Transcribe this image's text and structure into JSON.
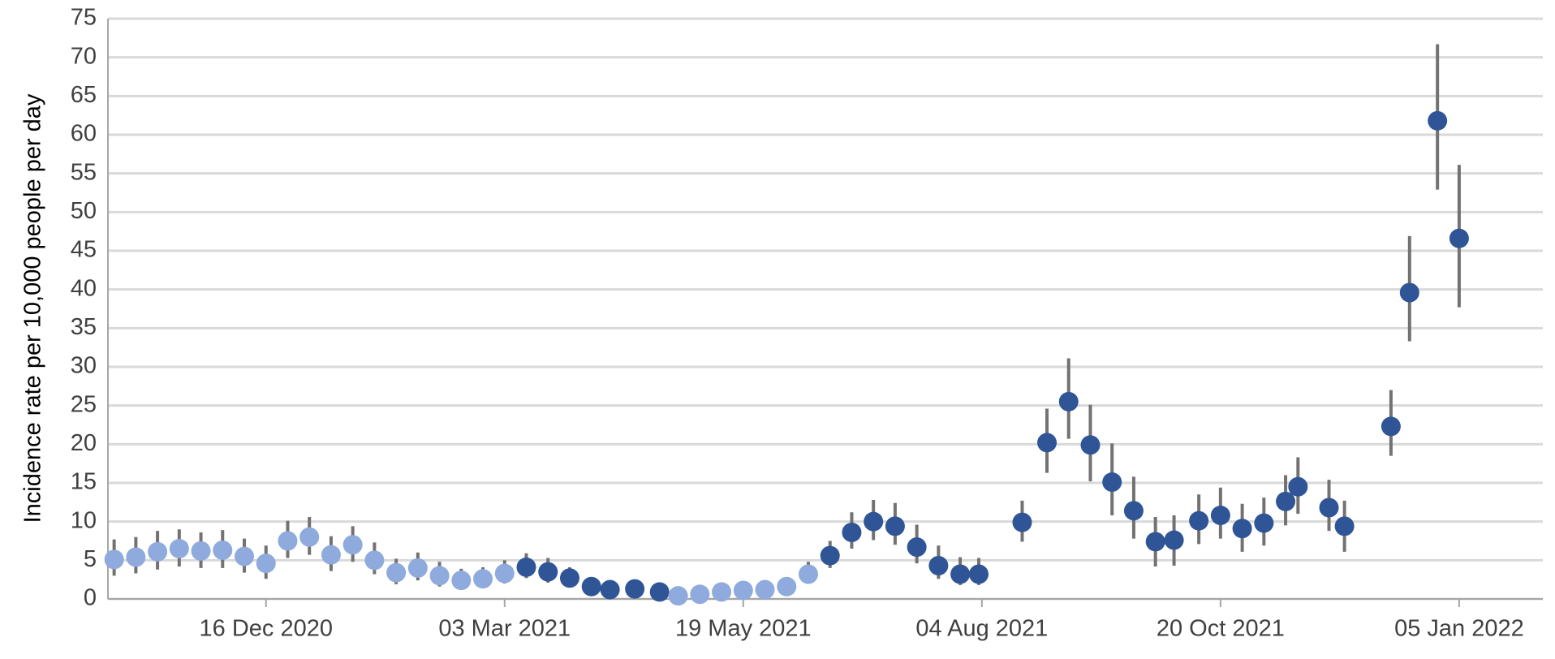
{
  "chart_data": {
    "type": "scatter-errorbar",
    "y_label": "Incidence rate per 10,000 people per day",
    "x": [
      "2020-10-28",
      "2020-11-04",
      "2020-11-11",
      "2020-11-18",
      "2020-11-25",
      "2020-12-02",
      "2020-12-09",
      "2020-12-16",
      "2020-12-23",
      "2020-12-30",
      "2021-01-06",
      "2021-01-13",
      "2021-01-20",
      "2021-01-27",
      "2021-02-03",
      "2021-02-10",
      "2021-02-17",
      "2021-02-24",
      "2021-03-03",
      "2021-03-10",
      "2021-03-17",
      "2021-03-24",
      "2021-03-31",
      "2021-04-06",
      "2021-04-14",
      "2021-04-22",
      "2021-04-28",
      "2021-05-05",
      "2021-05-12",
      "2021-05-19",
      "2021-05-26",
      "2021-06-02",
      "2021-06-09",
      "2021-06-16",
      "2021-06-23",
      "2021-06-30",
      "2021-07-07",
      "2021-07-14",
      "2021-07-21",
      "2021-07-28",
      "2021-08-03",
      "2021-08-17",
      "2021-08-25",
      "2021-09-01",
      "2021-09-08",
      "2021-09-15",
      "2021-09-22",
      "2021-09-29",
      "2021-10-05",
      "2021-10-13",
      "2021-10-20",
      "2021-10-27",
      "2021-11-03",
      "2021-11-10",
      "2021-11-14",
      "2021-11-24",
      "2021-11-29",
      "2021-12-14",
      "2021-12-20",
      "2021-12-29",
      "2022-01-05"
    ],
    "values": [
      5.1,
      5.4,
      6.1,
      6.5,
      6.2,
      6.3,
      5.5,
      4.6,
      7.5,
      8.0,
      5.7,
      7.0,
      5.0,
      3.4,
      4.0,
      3.0,
      2.4,
      2.6,
      3.3,
      4.1,
      3.5,
      2.7,
      1.6,
      1.2,
      1.3,
      0.9,
      0.4,
      0.6,
      0.9,
      1.1,
      1.2,
      1.6,
      3.2,
      5.6,
      8.6,
      10.0,
      9.4,
      6.7,
      4.3,
      3.2,
      3.2,
      9.9,
      20.2,
      25.5,
      19.9,
      15.1,
      11.4,
      7.4,
      7.6,
      10.1,
      10.8,
      9.1,
      9.8,
      12.6,
      14.5,
      11.8,
      9.4,
      22.3,
      39.6,
      61.8,
      46.6
    ],
    "lower": [
      3.0,
      3.3,
      3.8,
      4.2,
      4.0,
      4.0,
      3.4,
      2.6,
      5.3,
      5.7,
      3.6,
      4.8,
      3.2,
      1.9,
      2.4,
      1.6,
      1.3,
      1.5,
      2.0,
      2.7,
      2.1,
      1.6,
      0.8,
      0.5,
      0.6,
      0.3,
      0.1,
      0.2,
      0.3,
      0.4,
      0.5,
      0.7,
      2.0,
      4.0,
      6.5,
      7.6,
      7.0,
      4.6,
      2.6,
      1.8,
      1.8,
      7.4,
      16.3,
      20.7,
      15.2,
      10.8,
      7.8,
      4.2,
      4.3,
      7.1,
      7.8,
      6.1,
      6.9,
      9.5,
      11.0,
      8.8,
      6.1,
      18.5,
      33.3,
      52.9,
      37.7
    ],
    "upper": [
      7.7,
      8.0,
      8.8,
      9.0,
      8.6,
      8.9,
      7.8,
      6.9,
      10.1,
      10.6,
      8.1,
      9.4,
      7.3,
      5.2,
      6.0,
      4.8,
      3.9,
      4.1,
      5.0,
      5.9,
      5.3,
      4.1,
      2.8,
      2.2,
      2.3,
      1.8,
      1.1,
      1.4,
      1.8,
      2.0,
      2.2,
      2.8,
      4.8,
      7.5,
      11.2,
      12.8,
      12.4,
      9.6,
      6.9,
      5.4,
      5.3,
      12.7,
      24.6,
      31.1,
      25.1,
      20.1,
      15.8,
      10.6,
      10.8,
      13.5,
      14.4,
      12.3,
      13.1,
      16.0,
      18.3,
      15.4,
      12.7,
      27.0,
      46.9,
      71.7,
      56.1
    ],
    "point_colors": [
      "#8faadc",
      "#8faadc",
      "#8faadc",
      "#8faadc",
      "#8faadc",
      "#8faadc",
      "#8faadc",
      "#8faadc",
      "#8faadc",
      "#8faadc",
      "#8faadc",
      "#8faadc",
      "#8faadc",
      "#8faadc",
      "#8faadc",
      "#8faadc",
      "#8faadc",
      "#8faadc",
      "#8faadc",
      "#2f5597",
      "#2f5597",
      "#2f5597",
      "#2f5597",
      "#2f5597",
      "#2f5597",
      "#2f5597",
      "#8faadc",
      "#8faadc",
      "#8faadc",
      "#8faadc",
      "#8faadc",
      "#8faadc",
      "#8faadc",
      "#2f5597",
      "#2f5597",
      "#2f5597",
      "#2f5597",
      "#2f5597",
      "#2f5597",
      "#2f5597",
      "#2f5597",
      "#2f5597",
      "#2f5597",
      "#2f5597",
      "#2f5597",
      "#2f5597",
      "#2f5597",
      "#2f5597",
      "#2f5597",
      "#2f5597",
      "#2f5597",
      "#2f5597",
      "#2f5597",
      "#2f5597",
      "#2f5597",
      "#2f5597",
      "#2f5597",
      "#2f5597",
      "#2f5597",
      "#2f5597",
      "#2f5597"
    ],
    "errorbar_color": "#767171",
    "xlim": [
      "2020-10-26",
      "2022-02-01"
    ],
    "xticks": [
      {
        "value": "2020-12-16",
        "label": "16 Dec 2020"
      },
      {
        "value": "2021-03-03",
        "label": "03 Mar 2021"
      },
      {
        "value": "2021-05-19",
        "label": "19 May 2021"
      },
      {
        "value": "2021-08-04",
        "label": "04 Aug 2021"
      },
      {
        "value": "2021-10-20",
        "label": "20 Oct 2021"
      },
      {
        "value": "2022-01-05",
        "label": "05 Jan 2022"
      }
    ],
    "ylim": [
      0,
      75
    ],
    "yticks": [
      0,
      5,
      10,
      15,
      20,
      25,
      30,
      35,
      40,
      45,
      50,
      55,
      60,
      65,
      70,
      75
    ],
    "grid": true
  }
}
